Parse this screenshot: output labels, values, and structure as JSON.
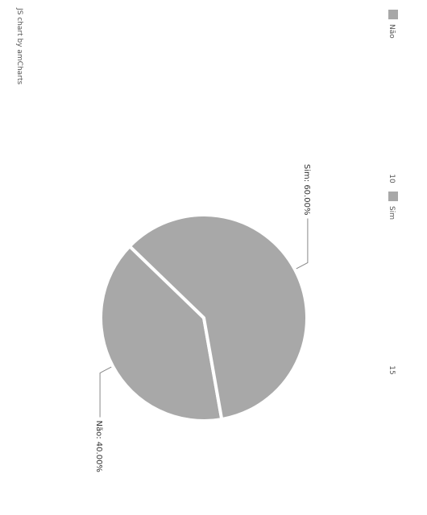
{
  "credit": "JS chart by amCharts",
  "colors": {
    "slice": "#a8a8a8",
    "separator": "#ffffff",
    "leader": "#888888",
    "swatch": "#a8a8a8"
  },
  "chart_data": {
    "type": "pie",
    "title": "",
    "slices": [
      {
        "label": "Não",
        "percent": 40.0,
        "display": "Não: 40.00%"
      },
      {
        "label": "Sim",
        "percent": 60.0,
        "display": "Sim: 60.00%"
      }
    ],
    "legend": {
      "placement": "bottom",
      "entries": [
        "Não",
        "Sim"
      ],
      "values": [
        "10",
        "15"
      ]
    }
  }
}
